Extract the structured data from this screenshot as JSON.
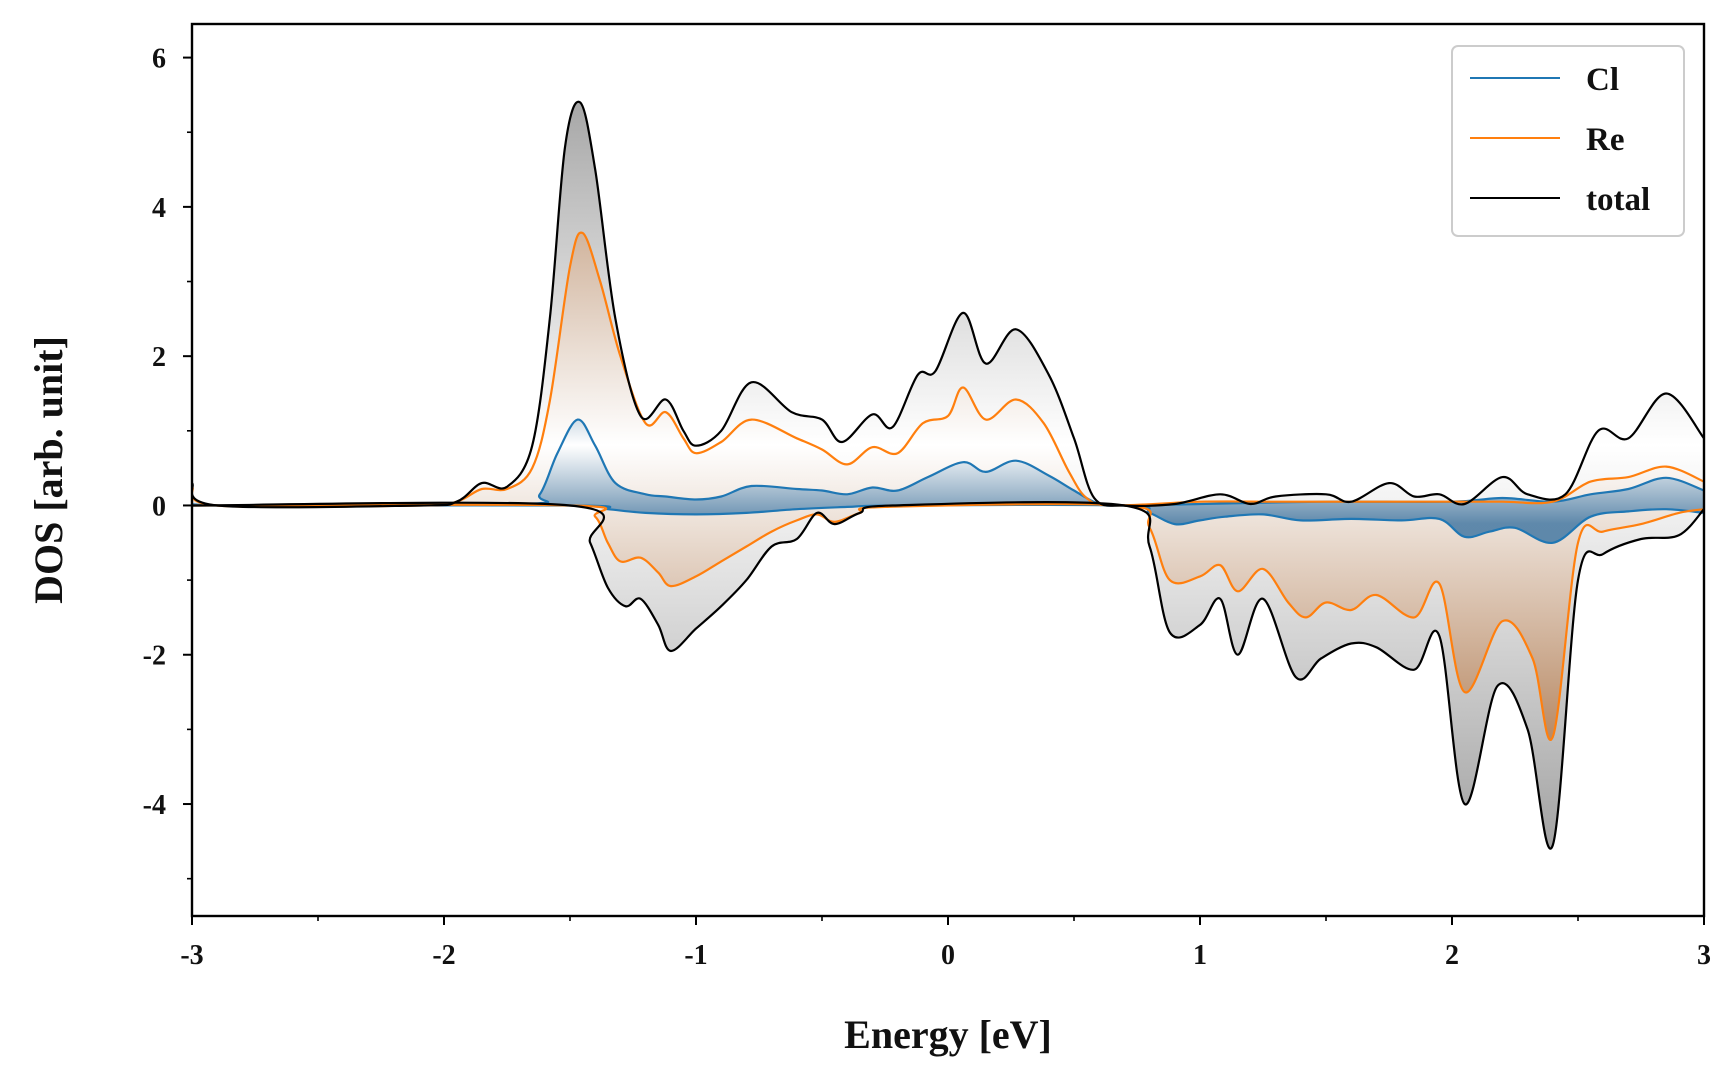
{
  "chart_data": {
    "type": "area",
    "title": "",
    "xlabel": "Energy [eV]",
    "ylabel": "DOS [arb. unit]",
    "xlim": [
      -3,
      3
    ],
    "ylim": [
      -5.5,
      6.45
    ],
    "x_major_ticks": [
      -3,
      -2,
      -1,
      0,
      1,
      2,
      3
    ],
    "x_tick_labels": [
      "-3",
      "-2",
      "-1",
      "0",
      "1",
      "2",
      "3"
    ],
    "x_minor_ticks": [
      -2.5,
      -1.5,
      -0.5,
      0.5,
      1.5,
      2.5
    ],
    "y_major_ticks": [
      -4,
      -2,
      0,
      2,
      4,
      6
    ],
    "y_tick_labels": [
      "-4",
      "-2",
      "0",
      "2",
      "4",
      "6"
    ],
    "y_minor_ticks": [
      -5,
      -3,
      -1,
      1,
      3,
      5
    ],
    "grid": false,
    "legend_position": "top-right",
    "legend": [
      "Cl",
      "Re",
      "total"
    ],
    "colors": {
      "Cl": "#1f77b4",
      "Re": "#ff7f0e",
      "total": "#000000"
    },
    "series": [
      {
        "name": "Cl",
        "color": "#1f77b4",
        "spin_up": [
          [
            -3,
            0.1
          ],
          [
            -2.9,
            0
          ],
          [
            -1.7,
            0.02
          ],
          [
            -1.62,
            0.15
          ],
          [
            -1.55,
            0.7
          ],
          [
            -1.47,
            1.15
          ],
          [
            -1.4,
            0.8
          ],
          [
            -1.32,
            0.3
          ],
          [
            -1.2,
            0.15
          ],
          [
            -1.12,
            0.12
          ],
          [
            -1.0,
            0.08
          ],
          [
            -0.9,
            0.12
          ],
          [
            -0.78,
            0.26
          ],
          [
            -0.6,
            0.22
          ],
          [
            -0.5,
            0.2
          ],
          [
            -0.4,
            0.15
          ],
          [
            -0.3,
            0.24
          ],
          [
            -0.2,
            0.2
          ],
          [
            -0.08,
            0.38
          ],
          [
            0.06,
            0.58
          ],
          [
            0.15,
            0.45
          ],
          [
            0.27,
            0.6
          ],
          [
            0.4,
            0.4
          ],
          [
            0.5,
            0.2
          ],
          [
            0.6,
            0.02
          ],
          [
            0.7,
            0
          ],
          [
            1.0,
            0.02
          ],
          [
            1.5,
            0.05
          ],
          [
            2.0,
            0.05
          ],
          [
            2.2,
            0.1
          ],
          [
            2.4,
            0.05
          ],
          [
            2.55,
            0.15
          ],
          [
            2.7,
            0.22
          ],
          [
            2.85,
            0.37
          ],
          [
            3,
            0.2
          ]
        ],
        "spin_down": [
          [
            -3,
            0
          ],
          [
            -1.5,
            0
          ],
          [
            -1.35,
            -0.05
          ],
          [
            -1.2,
            -0.1
          ],
          [
            -1.0,
            -0.12
          ],
          [
            -0.8,
            -0.1
          ],
          [
            -0.6,
            -0.05
          ],
          [
            -0.4,
            -0.02
          ],
          [
            -0.2,
            0
          ],
          [
            0.7,
            0
          ],
          [
            0.8,
            -0.1
          ],
          [
            0.9,
            -0.25
          ],
          [
            1.0,
            -0.2
          ],
          [
            1.1,
            -0.15
          ],
          [
            1.25,
            -0.12
          ],
          [
            1.4,
            -0.2
          ],
          [
            1.6,
            -0.18
          ],
          [
            1.8,
            -0.2
          ],
          [
            1.95,
            -0.18
          ],
          [
            2.05,
            -0.42
          ],
          [
            2.15,
            -0.35
          ],
          [
            2.25,
            -0.3
          ],
          [
            2.4,
            -0.5
          ],
          [
            2.55,
            -0.15
          ],
          [
            2.7,
            -0.08
          ],
          [
            2.85,
            -0.05
          ],
          [
            3,
            -0.1
          ]
        ]
      },
      {
        "name": "Re",
        "color": "#ff7f0e",
        "spin_up": [
          [
            -3,
            0.25
          ],
          [
            -2.9,
            0
          ],
          [
            -2.1,
            0
          ],
          [
            -1.95,
            0.05
          ],
          [
            -1.85,
            0.22
          ],
          [
            -1.75,
            0.22
          ],
          [
            -1.65,
            0.5
          ],
          [
            -1.58,
            1.4
          ],
          [
            -1.5,
            3.2
          ],
          [
            -1.45,
            3.65
          ],
          [
            -1.38,
            3.0
          ],
          [
            -1.3,
            2.0
          ],
          [
            -1.2,
            1.1
          ],
          [
            -1.12,
            1.25
          ],
          [
            -1.05,
            0.9
          ],
          [
            -1.0,
            0.7
          ],
          [
            -0.9,
            0.85
          ],
          [
            -0.78,
            1.15
          ],
          [
            -0.6,
            0.9
          ],
          [
            -0.5,
            0.75
          ],
          [
            -0.4,
            0.55
          ],
          [
            -0.3,
            0.78
          ],
          [
            -0.2,
            0.7
          ],
          [
            -0.1,
            1.1
          ],
          [
            0.0,
            1.2
          ],
          [
            0.06,
            1.58
          ],
          [
            0.15,
            1.15
          ],
          [
            0.27,
            1.42
          ],
          [
            0.38,
            1.1
          ],
          [
            0.48,
            0.45
          ],
          [
            0.55,
            0.1
          ],
          [
            0.65,
            0
          ],
          [
            1.0,
            0.05
          ],
          [
            1.3,
            0.05
          ],
          [
            1.6,
            0.05
          ],
          [
            1.8,
            0.05
          ],
          [
            2.0,
            0.05
          ],
          [
            2.2,
            0.05
          ],
          [
            2.4,
            0.05
          ],
          [
            2.55,
            0.32
          ],
          [
            2.7,
            0.38
          ],
          [
            2.85,
            0.52
          ],
          [
            3,
            0.32
          ]
        ],
        "spin_down": [
          [
            -3,
            0
          ],
          [
            -1.5,
            0
          ],
          [
            -1.4,
            -0.15
          ],
          [
            -1.35,
            -0.5
          ],
          [
            -1.3,
            -0.75
          ],
          [
            -1.22,
            -0.7
          ],
          [
            -1.15,
            -0.9
          ],
          [
            -1.1,
            -1.08
          ],
          [
            -1.0,
            -0.95
          ],
          [
            -0.9,
            -0.75
          ],
          [
            -0.8,
            -0.55
          ],
          [
            -0.7,
            -0.35
          ],
          [
            -0.6,
            -0.2
          ],
          [
            -0.52,
            -0.12
          ],
          [
            -0.45,
            -0.22
          ],
          [
            -0.35,
            -0.1
          ],
          [
            -0.25,
            -0.02
          ],
          [
            0.7,
            0
          ],
          [
            0.8,
            -0.3
          ],
          [
            0.88,
            -1.0
          ],
          [
            1.0,
            -0.95
          ],
          [
            1.08,
            -0.8
          ],
          [
            1.15,
            -1.15
          ],
          [
            1.25,
            -0.85
          ],
          [
            1.35,
            -1.3
          ],
          [
            1.42,
            -1.5
          ],
          [
            1.5,
            -1.3
          ],
          [
            1.6,
            -1.4
          ],
          [
            1.7,
            -1.2
          ],
          [
            1.85,
            -1.5
          ],
          [
            1.95,
            -1.05
          ],
          [
            2.05,
            -2.5
          ],
          [
            2.2,
            -1.55
          ],
          [
            2.32,
            -2.05
          ],
          [
            2.4,
            -3.1
          ],
          [
            2.5,
            -0.5
          ],
          [
            2.6,
            -0.35
          ],
          [
            2.75,
            -0.25
          ],
          [
            2.9,
            -0.1
          ],
          [
            3,
            -0.05
          ]
        ]
      },
      {
        "name": "total",
        "color": "#000000",
        "spin_up": [
          [
            -3,
            0.3
          ],
          [
            -2.9,
            0
          ],
          [
            -2.1,
            0
          ],
          [
            -1.95,
            0.05
          ],
          [
            -1.85,
            0.3
          ],
          [
            -1.75,
            0.25
          ],
          [
            -1.65,
            0.8
          ],
          [
            -1.58,
            2.5
          ],
          [
            -1.52,
            4.8
          ],
          [
            -1.46,
            5.4
          ],
          [
            -1.4,
            4.5
          ],
          [
            -1.32,
            2.5
          ],
          [
            -1.22,
            1.2
          ],
          [
            -1.12,
            1.42
          ],
          [
            -1.05,
            1.0
          ],
          [
            -1.0,
            0.8
          ],
          [
            -0.9,
            1.0
          ],
          [
            -0.78,
            1.65
          ],
          [
            -0.62,
            1.25
          ],
          [
            -0.5,
            1.15
          ],
          [
            -0.42,
            0.85
          ],
          [
            -0.3,
            1.22
          ],
          [
            -0.22,
            1.05
          ],
          [
            -0.12,
            1.75
          ],
          [
            -0.05,
            1.8
          ],
          [
            0.06,
            2.58
          ],
          [
            0.15,
            1.9
          ],
          [
            0.27,
            2.36
          ],
          [
            0.4,
            1.75
          ],
          [
            0.5,
            0.9
          ],
          [
            0.58,
            0.1
          ],
          [
            0.7,
            0
          ],
          [
            0.9,
            0.02
          ],
          [
            1.08,
            0.15
          ],
          [
            1.2,
            0.02
          ],
          [
            1.3,
            0.12
          ],
          [
            1.5,
            0.15
          ],
          [
            1.6,
            0.05
          ],
          [
            1.75,
            0.3
          ],
          [
            1.85,
            0.12
          ],
          [
            1.95,
            0.15
          ],
          [
            2.05,
            0.02
          ],
          [
            2.2,
            0.38
          ],
          [
            2.3,
            0.15
          ],
          [
            2.45,
            0.15
          ],
          [
            2.58,
            1.0
          ],
          [
            2.7,
            0.9
          ],
          [
            2.85,
            1.5
          ],
          [
            3,
            0.9
          ]
        ],
        "spin_down": [
          [
            -3,
            0
          ],
          [
            -1.5,
            0
          ],
          [
            -1.42,
            -0.5
          ],
          [
            -1.35,
            -1.1
          ],
          [
            -1.28,
            -1.35
          ],
          [
            -1.22,
            -1.25
          ],
          [
            -1.15,
            -1.6
          ],
          [
            -1.1,
            -1.95
          ],
          [
            -1.0,
            -1.65
          ],
          [
            -0.9,
            -1.35
          ],
          [
            -0.8,
            -1.0
          ],
          [
            -0.7,
            -0.55
          ],
          [
            -0.6,
            -0.45
          ],
          [
            -0.52,
            -0.1
          ],
          [
            -0.45,
            -0.25
          ],
          [
            -0.35,
            -0.1
          ],
          [
            -0.22,
            0
          ],
          [
            0.7,
            0
          ],
          [
            0.8,
            -0.55
          ],
          [
            0.88,
            -1.7
          ],
          [
            1.0,
            -1.6
          ],
          [
            1.08,
            -1.25
          ],
          [
            1.15,
            -2.0
          ],
          [
            1.25,
            -1.25
          ],
          [
            1.38,
            -2.3
          ],
          [
            1.48,
            -2.05
          ],
          [
            1.6,
            -1.85
          ],
          [
            1.7,
            -1.9
          ],
          [
            1.85,
            -2.2
          ],
          [
            1.95,
            -1.75
          ],
          [
            2.05,
            -4.0
          ],
          [
            2.18,
            -2.42
          ],
          [
            2.3,
            -3.0
          ],
          [
            2.4,
            -4.55
          ],
          [
            2.5,
            -1.0
          ],
          [
            2.6,
            -0.65
          ],
          [
            2.75,
            -0.45
          ],
          [
            2.9,
            -0.4
          ],
          [
            3,
            -0.05
          ]
        ]
      }
    ]
  }
}
